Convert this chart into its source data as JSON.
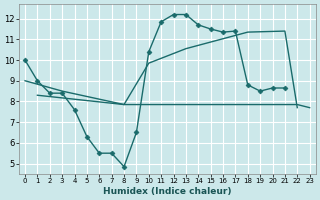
{
  "xlabel": "Humidex (Indice chaleur)",
  "background_color": "#cce8ea",
  "grid_color": "#ffffff",
  "line_color": "#1a6b6b",
  "xlim": [
    -0.5,
    23.5
  ],
  "ylim": [
    4.5,
    12.7
  ],
  "xticks": [
    0,
    1,
    2,
    3,
    4,
    5,
    6,
    7,
    8,
    9,
    10,
    11,
    12,
    13,
    14,
    15,
    16,
    17,
    18,
    19,
    20,
    21,
    22,
    23
  ],
  "yticks": [
    5,
    6,
    7,
    8,
    9,
    10,
    11,
    12
  ],
  "series": [
    {
      "x": [
        0,
        1,
        2,
        3,
        4,
        5,
        6,
        7,
        8,
        9,
        10,
        11,
        12,
        13,
        14,
        15,
        16,
        17,
        18,
        19,
        20,
        21
      ],
      "y": [
        10.0,
        9.0,
        8.4,
        8.4,
        7.6,
        6.3,
        5.5,
        5.5,
        4.85,
        6.5,
        10.4,
        11.85,
        12.2,
        12.2,
        11.7,
        11.5,
        11.35,
        11.4,
        8.8,
        8.5,
        8.65,
        8.65
      ],
      "marker": "D",
      "linewidth": 1.0
    },
    {
      "x": [
        0,
        3,
        8,
        10,
        13,
        18,
        21,
        22
      ],
      "y": [
        9.0,
        8.5,
        7.85,
        9.85,
        10.55,
        11.35,
        11.4,
        7.7
      ],
      "marker": null,
      "linewidth": 1.0
    },
    {
      "x": [
        1,
        8,
        14,
        22,
        23
      ],
      "y": [
        8.3,
        7.85,
        7.85,
        7.85,
        7.7
      ],
      "marker": null,
      "linewidth": 1.0
    }
  ]
}
